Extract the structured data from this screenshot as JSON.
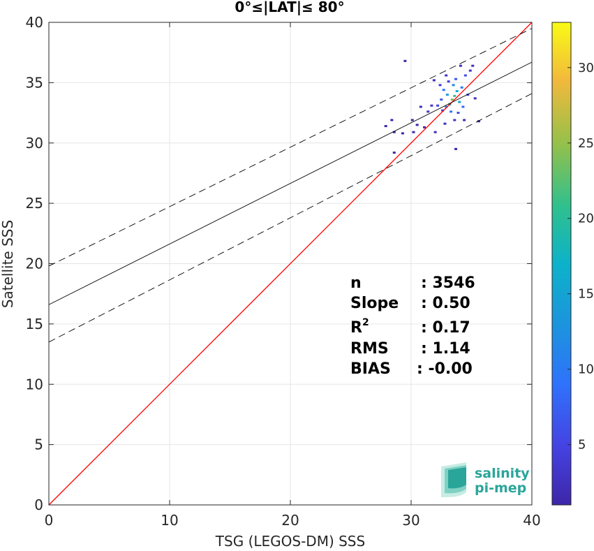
{
  "chart_data": {
    "type": "scatter",
    "title": "0°≤|LAT|≤ 80°",
    "xlabel": "TSG (LEGOS-DM) SSS",
    "ylabel": "Satellite SSS",
    "xlim": [
      0,
      40
    ],
    "ylim": [
      0,
      40
    ],
    "xticks": [
      0,
      10,
      20,
      30,
      40
    ],
    "yticks": [
      0,
      5,
      10,
      15,
      20,
      25,
      30,
      35,
      40
    ],
    "grid": true,
    "colorbar": {
      "min": 1,
      "max": 33,
      "ticks": [
        5,
        10,
        15,
        20,
        25,
        30
      ],
      "colormap": "parula"
    },
    "lines": [
      {
        "role": "identity",
        "color": "#ff0000",
        "style": "solid",
        "points": [
          [
            0,
            0
          ],
          [
            40,
            40
          ]
        ]
      },
      {
        "role": "regression",
        "color": "#000000",
        "style": "solid",
        "points": [
          [
            0,
            16.6
          ],
          [
            40,
            36.7
          ]
        ]
      },
      {
        "role": "upper-bound",
        "color": "#000000",
        "style": "dashed",
        "points": [
          [
            0,
            19.8
          ],
          [
            40,
            39.5
          ]
        ]
      },
      {
        "role": "lower-bound",
        "color": "#000000",
        "style": "dashed",
        "points": [
          [
            0,
            13.5
          ],
          [
            40,
            34.1
          ]
        ]
      }
    ],
    "density_points": [
      {
        "x": 33.4,
        "y": 33.6,
        "c": 24
      },
      {
        "x": 33.6,
        "y": 33.9,
        "c": 21
      },
      {
        "x": 33.2,
        "y": 33.2,
        "c": 18
      },
      {
        "x": 33.8,
        "y": 34.3,
        "c": 16
      },
      {
        "x": 33.0,
        "y": 34.0,
        "c": 14
      },
      {
        "x": 34.0,
        "y": 33.4,
        "c": 15
      },
      {
        "x": 33.5,
        "y": 34.8,
        "c": 12
      },
      {
        "x": 32.9,
        "y": 33.0,
        "c": 11
      },
      {
        "x": 34.2,
        "y": 34.6,
        "c": 10
      },
      {
        "x": 32.7,
        "y": 34.4,
        "c": 9
      },
      {
        "x": 33.3,
        "y": 32.6,
        "c": 9
      },
      {
        "x": 34.3,
        "y": 33.0,
        "c": 8
      },
      {
        "x": 32.5,
        "y": 33.6,
        "c": 7
      },
      {
        "x": 33.7,
        "y": 35.3,
        "c": 7
      },
      {
        "x": 34.5,
        "y": 35.6,
        "c": 6
      },
      {
        "x": 32.6,
        "y": 32.7,
        "c": 6
      },
      {
        "x": 33.9,
        "y": 32.5,
        "c": 6
      },
      {
        "x": 32.2,
        "y": 33.1,
        "c": 5
      },
      {
        "x": 34.7,
        "y": 34.0,
        "c": 5
      },
      {
        "x": 33.1,
        "y": 35.1,
        "c": 4
      },
      {
        "x": 32.4,
        "y": 34.8,
        "c": 4
      },
      {
        "x": 34.9,
        "y": 36.0,
        "c": 3
      },
      {
        "x": 31.7,
        "y": 33.1,
        "c": 3
      },
      {
        "x": 31.4,
        "y": 32.6,
        "c": 3
      },
      {
        "x": 33.6,
        "y": 31.9,
        "c": 3
      },
      {
        "x": 32.8,
        "y": 31.6,
        "c": 2
      },
      {
        "x": 34.4,
        "y": 31.9,
        "c": 2
      },
      {
        "x": 35.3,
        "y": 33.7,
        "c": 2
      },
      {
        "x": 35.1,
        "y": 36.4,
        "c": 2
      },
      {
        "x": 30.8,
        "y": 33.0,
        "c": 2
      },
      {
        "x": 31.1,
        "y": 31.3,
        "c": 1
      },
      {
        "x": 30.5,
        "y": 31.5,
        "c": 1
      },
      {
        "x": 29.3,
        "y": 30.8,
        "c": 1
      },
      {
        "x": 28.6,
        "y": 30.9,
        "c": 1
      },
      {
        "x": 27.9,
        "y": 31.4,
        "c": 1
      },
      {
        "x": 28.4,
        "y": 31.9,
        "c": 1
      },
      {
        "x": 29.5,
        "y": 36.8,
        "c": 1
      },
      {
        "x": 30.1,
        "y": 31.9,
        "c": 1
      },
      {
        "x": 32.0,
        "y": 30.9,
        "c": 2
      },
      {
        "x": 33.7,
        "y": 29.5,
        "c": 1
      },
      {
        "x": 28.6,
        "y": 29.2,
        "c": 1
      },
      {
        "x": 35.6,
        "y": 31.8,
        "c": 1
      },
      {
        "x": 31.9,
        "y": 35.2,
        "c": 2
      },
      {
        "x": 34.1,
        "y": 36.4,
        "c": 2
      },
      {
        "x": 32.9,
        "y": 35.6,
        "c": 3
      },
      {
        "x": 30.2,
        "y": 30.9,
        "c": 1
      }
    ]
  },
  "stats": {
    "n_label": "n",
    "n_value": ": 3546",
    "slope_label": "Slope",
    "slope_value": ": 0.50",
    "r2_label": "R",
    "r2_sup": "2",
    "r2_value": ": 0.17",
    "rms_label": "RMS",
    "rms_value": ": 1.14",
    "bias_label": "BIAS",
    "bias_value": ": -0.00"
  },
  "logo": {
    "line1": "salinity",
    "line2": "pi-mep",
    "colors": [
      "#2aa59a",
      "#7fd1c3",
      "#c7ece4"
    ]
  }
}
